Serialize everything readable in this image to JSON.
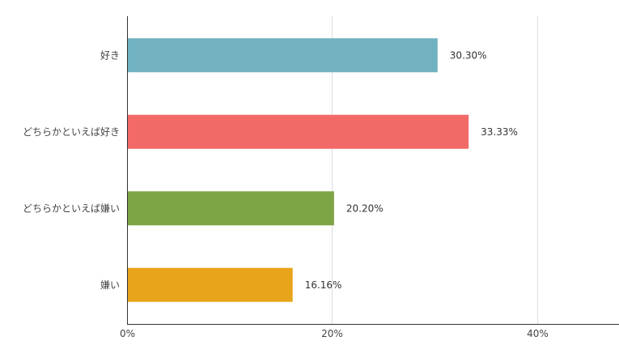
{
  "chart_data": {
    "type": "bar",
    "orientation": "horizontal",
    "categories": [
      "好き",
      "どちらかといえば好き",
      "どちらかといえば嫌い",
      "嫌い"
    ],
    "values": [
      30.3,
      33.33,
      20.2,
      16.16
    ],
    "value_labels": [
      "30.30%",
      "33.33%",
      "20.20%",
      "16.16%"
    ],
    "colors": [
      "#72b1c0",
      "#f16a68",
      "#7da445",
      "#e8a51b"
    ],
    "xlim": [
      0,
      48
    ],
    "x_ticks": [
      0,
      20,
      40
    ],
    "x_tick_labels": [
      "0%",
      "20%",
      "40%"
    ],
    "grid": true,
    "title": "",
    "xlabel": "",
    "ylabel": ""
  }
}
